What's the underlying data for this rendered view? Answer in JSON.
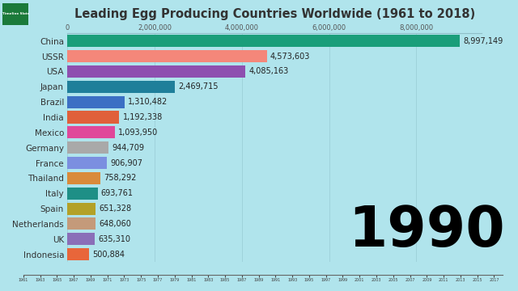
{
  "chart_data": [
    {
      "type": "bar",
      "title": "Leading Egg Producing Countries Worldwide (1961 to 2018)",
      "orientation": "horizontal",
      "categories": [
        "China",
        "USSR",
        "USA",
        "Japan",
        "Brazil",
        "India",
        "Mexico",
        "Germany",
        "France",
        "Thailand",
        "Italy",
        "Spain",
        "Netherlands",
        "UK",
        "Indonesia"
      ],
      "values": [
        8997149,
        4573603,
        4085163,
        2469715,
        1310482,
        1192338,
        1093950,
        944709,
        906907,
        758292,
        693761,
        651328,
        648060,
        635310,
        500884
      ],
      "value_labels": [
        "8,997,149",
        "4,573,603",
        "4,085,163",
        "2,469,715",
        "1,310,482",
        "1,192,338",
        "1,093,950",
        "944,709",
        "906,907",
        "758,292",
        "693,761",
        "651,328",
        "648,060",
        "635,310",
        "500,884"
      ],
      "colors": [
        "#1a9e7a",
        "#f4877a",
        "#8e4fb0",
        "#1f7f9a",
        "#3b6fc4",
        "#e0603a",
        "#e0489a",
        "#a9a9a9",
        "#7b8fe0",
        "#d98a3a",
        "#1e8f86",
        "#b3a128",
        "#c49a7a",
        "#8a6fb8",
        "#e8663a"
      ],
      "data_labels": true,
      "grid": true,
      "xlim": [
        0,
        9500000
      ],
      "xticks": [
        0,
        {
          "value": 2000000,
          "label": "2,000,000"
        },
        {
          "value": 4000000,
          "label": "4,000,000"
        },
        {
          "value": 6000000,
          "label": "6,000,000"
        },
        {
          "value": 8000000,
          "label": "8,000,000"
        }
      ],
      "annotations": [
        "1990",
        "Timeline Slots"
      ]
    },
    {
      "type": "timeline",
      "xlim": [
        1961,
        2018
      ],
      "xticks": [
        1961,
        1963,
        1965,
        1967,
        1969,
        1971,
        1973,
        1975,
        1977,
        1979,
        1981,
        1983,
        1985,
        1987,
        1989,
        1991,
        1993,
        1995,
        1997,
        1999,
        2001,
        2003,
        2005,
        2007,
        2009,
        2011,
        2013,
        2015,
        2017
      ]
    }
  ]
}
